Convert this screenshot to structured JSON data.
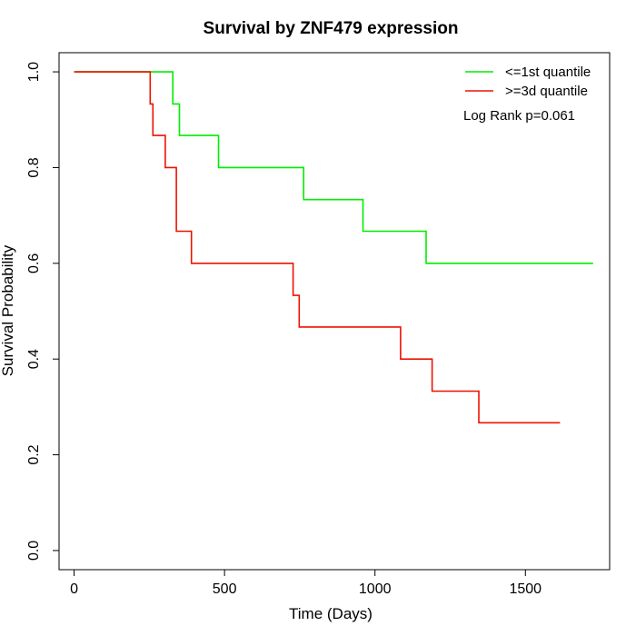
{
  "chart_data": {
    "type": "line",
    "title": "Survival by ZNF479 expression",
    "xlabel": "Time (Days)",
    "ylabel": "Survival Probability",
    "xlim": [
      -50,
      1780
    ],
    "ylim": [
      -0.04,
      1.04
    ],
    "x_ticks": [
      {
        "value": 0,
        "label": "0"
      },
      {
        "value": 500,
        "label": "500"
      },
      {
        "value": 1000,
        "label": "1000"
      },
      {
        "value": 1500,
        "label": "1500"
      }
    ],
    "y_ticks": [
      {
        "value": 0.0,
        "label": "0.0"
      },
      {
        "value": 0.2,
        "label": "0.2"
      },
      {
        "value": 0.4,
        "label": "0.4"
      },
      {
        "value": 0.6,
        "label": "0.6"
      },
      {
        "value": 0.8,
        "label": "0.8"
      },
      {
        "value": 1.0,
        "label": "1.0"
      }
    ],
    "grid": false,
    "legend_position": "top-right",
    "annotation": "Log Rank p=0.061",
    "series": [
      {
        "name": "<=1st quantile",
        "color": "#00ee00",
        "step": true,
        "points": [
          [
            0,
            1.0
          ],
          [
            328,
            1.0
          ],
          [
            328,
            0.933
          ],
          [
            350,
            0.933
          ],
          [
            350,
            0.867
          ],
          [
            480,
            0.867
          ],
          [
            480,
            0.8
          ],
          [
            763,
            0.8
          ],
          [
            763,
            0.733
          ],
          [
            960,
            0.733
          ],
          [
            960,
            0.667
          ],
          [
            1170,
            0.667
          ],
          [
            1170,
            0.6
          ],
          [
            1725,
            0.6
          ]
        ]
      },
      {
        "name": ">=3d quantile",
        "color": "#ee1100",
        "step": true,
        "points": [
          [
            0,
            1.0
          ],
          [
            253,
            1.0
          ],
          [
            253,
            0.933
          ],
          [
            262,
            0.933
          ],
          [
            262,
            0.867
          ],
          [
            303,
            0.867
          ],
          [
            303,
            0.8
          ],
          [
            340,
            0.8
          ],
          [
            340,
            0.667
          ],
          [
            390,
            0.667
          ],
          [
            390,
            0.6
          ],
          [
            728,
            0.6
          ],
          [
            728,
            0.533
          ],
          [
            748,
            0.533
          ],
          [
            748,
            0.467
          ],
          [
            1085,
            0.467
          ],
          [
            1085,
            0.4
          ],
          [
            1190,
            0.4
          ],
          [
            1190,
            0.333
          ],
          [
            1345,
            0.333
          ],
          [
            1345,
            0.267
          ],
          [
            1615,
            0.267
          ]
        ]
      }
    ]
  }
}
